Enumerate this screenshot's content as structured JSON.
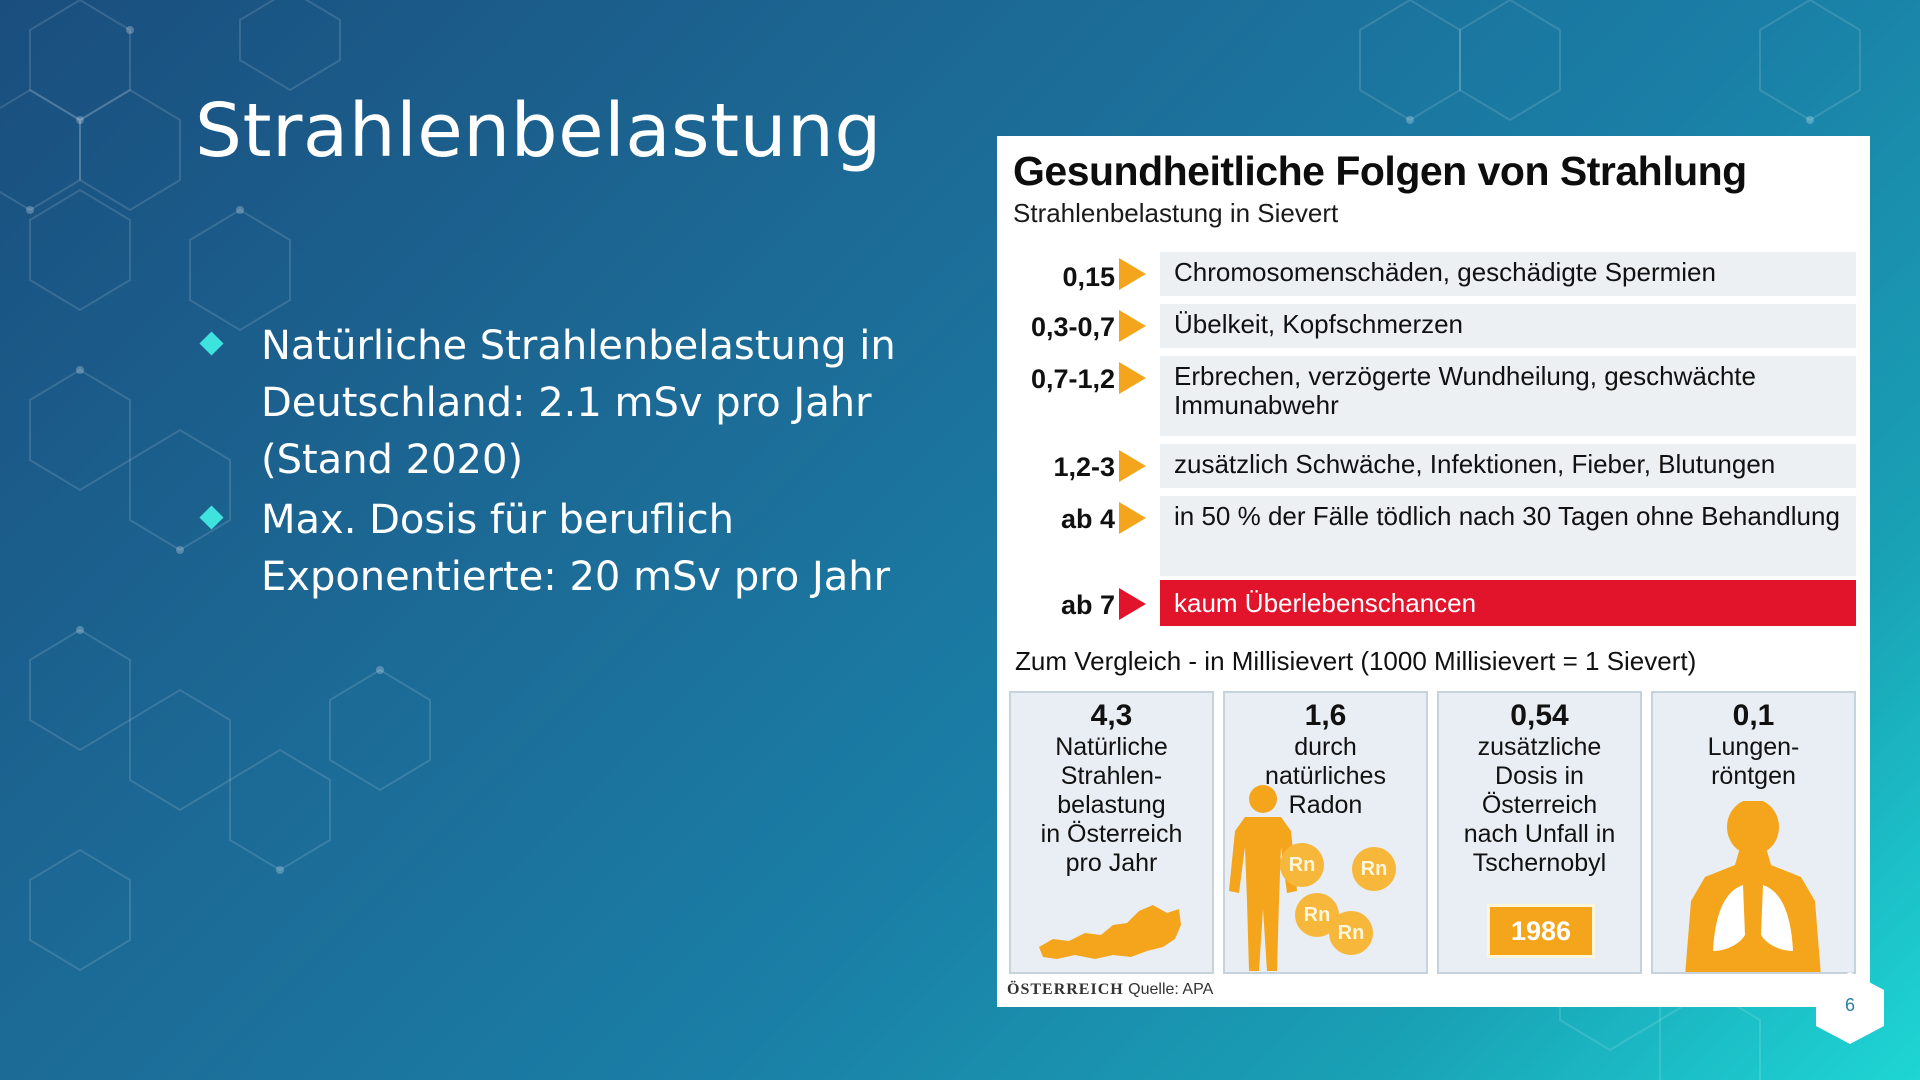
{
  "slide": {
    "title": "Strahlenbelastung",
    "bullets": [
      {
        "text": "Natürliche Strahlenbelastung in Deutschland: 2.1 mSv pro Jahr (Stand 2020)"
      },
      {
        "text": "Max. Dosis für beruflich Exponentierte: 20 mSv pro Jahr"
      }
    ],
    "page_number": "6"
  },
  "infographic": {
    "title": "Gesundheitliche Folgen von Strahlung",
    "subtitle": "Strahlenbelastung in Sievert",
    "rows": [
      {
        "value": "0,15",
        "effect": "Chromosomenschäden, geschädigte Spermien",
        "highlight": false
      },
      {
        "value": "0,3-0,7",
        "effect": "Übelkeit, Kopfschmerzen",
        "highlight": false
      },
      {
        "value": "0,7-1,2",
        "effect": "Erbrechen, verzögerte Wundheilung, geschwächte Immunabwehr",
        "highlight": false
      },
      {
        "value": "1,2-3",
        "effect": "zusätzlich Schwäche, Infektionen, Fieber, Blutungen",
        "highlight": false
      },
      {
        "value": "ab 4",
        "effect": "in 50 % der Fälle tödlich nach 30 Tagen ohne Behandlung",
        "highlight": false
      },
      {
        "value": "ab 7",
        "effect": "kaum Überlebenschancen",
        "highlight": true
      }
    ],
    "comparison_heading": "Zum Vergleich - in Millisievert (1000 Millisievert = 1 Sievert)",
    "comparisons": [
      {
        "value": "4,3",
        "text": "Natürliche\nStrahlen-\nbelastung\nin Österreich\npro Jahr"
      },
      {
        "value": "1,6",
        "text": "durch\nnatürliches\nRadon",
        "radon_label": "Rn"
      },
      {
        "value": "0,54",
        "text": "zusätzliche\nDosis in\nÖsterreich\nnach Unfall in\nTschernobyl",
        "year": "1986"
      },
      {
        "value": "0,1",
        "text": "Lungen-\nröntgen"
      }
    ],
    "footer_brand": "ÖSTERREICH",
    "footer_source": "Quelle: APA",
    "colors": {
      "arrow": "#f4a51c",
      "highlight": "#e2142b",
      "figure": "#f4a51c"
    }
  }
}
